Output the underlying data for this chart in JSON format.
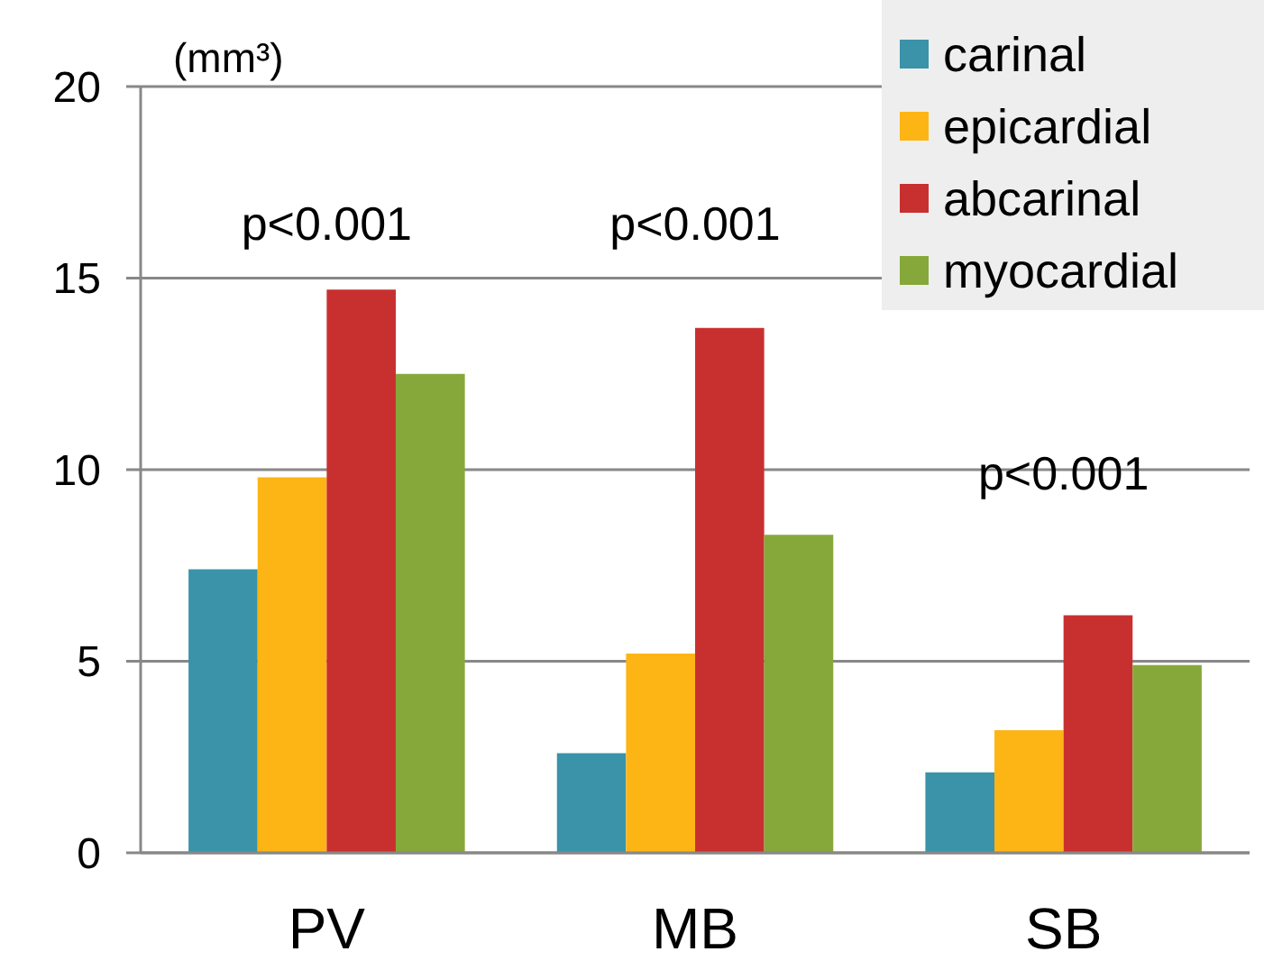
{
  "chart_data": {
    "type": "bar",
    "ylabel": "(mm³)",
    "categories": [
      "PV",
      "MB",
      "SB"
    ],
    "series": [
      {
        "name": "carinal",
        "color": "#3a93a8",
        "values": [
          7.4,
          2.6,
          2.1
        ]
      },
      {
        "name": "epicardial",
        "color": "#fdb515",
        "values": [
          9.8,
          5.2,
          3.2
        ]
      },
      {
        "name": "abcarinal",
        "color": "#c83030",
        "values": [
          14.7,
          13.7,
          6.2
        ]
      },
      {
        "name": "myocardial",
        "color": "#86a83a",
        "values": [
          12.5,
          8.3,
          4.9
        ]
      }
    ],
    "ylim": [
      0,
      20
    ],
    "yticks": [
      0,
      5,
      10,
      15,
      20
    ],
    "grid": "y",
    "legend": "top right",
    "annotations": [
      "p<0.001",
      "p<0.001",
      "p<0.001"
    ]
  }
}
